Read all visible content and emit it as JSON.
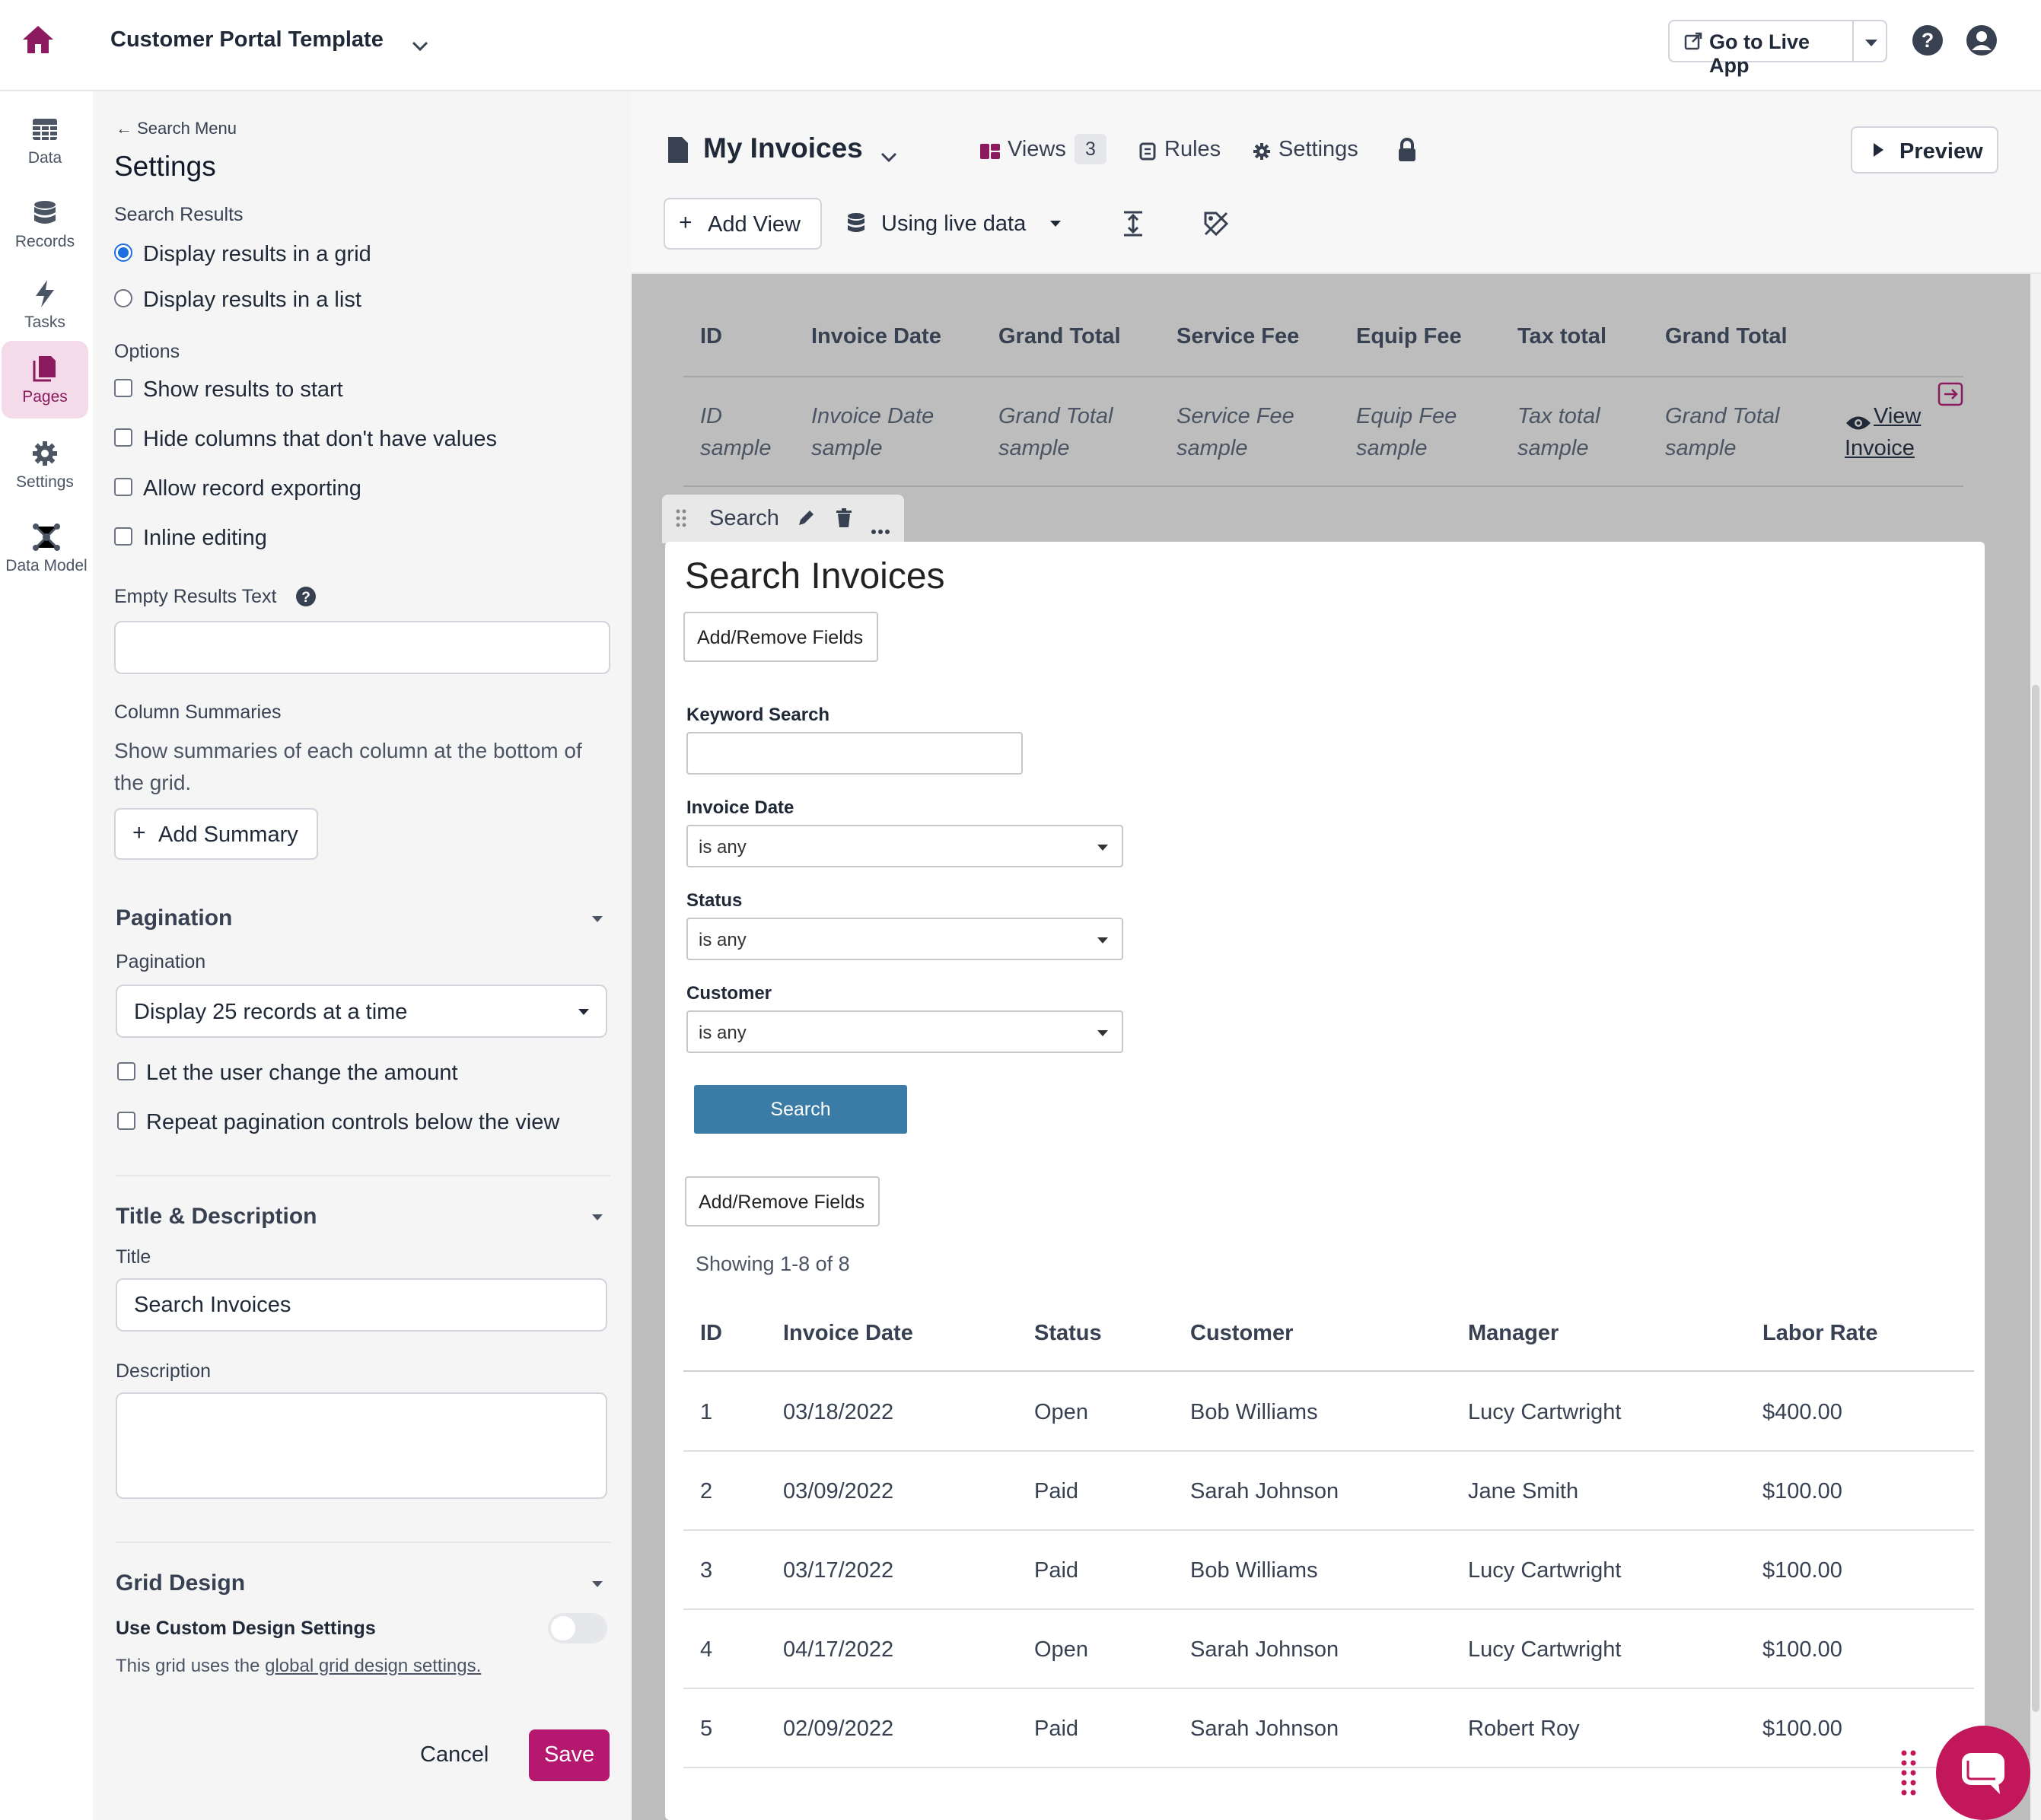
{
  "topbar": {
    "app_name": "Customer Portal Template",
    "go_live_label": "Go to Live App"
  },
  "leftnav": {
    "items": [
      {
        "label": "Data",
        "icon": "table-icon"
      },
      {
        "label": "Records",
        "icon": "database-icon"
      },
      {
        "label": "Tasks",
        "icon": "bolt-icon"
      },
      {
        "label": "Pages",
        "icon": "pages-icon"
      },
      {
        "label": "Settings",
        "icon": "gear-icon"
      },
      {
        "label": "Data Model",
        "icon": "network-icon"
      }
    ],
    "active": "Pages"
  },
  "panel": {
    "back_label": "Search Menu",
    "title": "Settings",
    "search_results_label": "Search Results",
    "display_grid": "Display results in a grid",
    "display_list": "Display results in a list",
    "options_label": "Options",
    "options": [
      "Show results to start",
      "Hide columns that don't have values",
      "Allow record exporting",
      "Inline editing"
    ],
    "empty_results_label": "Empty Results Text",
    "empty_results_value": "",
    "column_summaries_label": "Column Summaries",
    "column_summaries_desc": "Show summaries of each column at the bottom of the grid.",
    "add_summary": "Add Summary",
    "pagination_header": "Pagination",
    "pagination_label": "Pagination",
    "pagination_value": "Display 25 records at a time",
    "pagination_opts": [
      "Let the user change the amount",
      "Repeat pagination controls below the view"
    ],
    "title_desc_header": "Title & Description",
    "title_label": "Title",
    "title_value": "Search Invoices",
    "description_label": "Description",
    "description_value": "",
    "grid_design_header": "Grid Design",
    "custom_design_label": "Use Custom Design Settings",
    "grid_note_prefix": "This grid uses the ",
    "grid_note_link": "global grid design settings.",
    "cancel": "Cancel",
    "save": "Save"
  },
  "page": {
    "name": "My Invoices",
    "views_label": "Views",
    "views_count": "3",
    "rules_label": "Rules",
    "settings_label": "Settings",
    "preview_label": "Preview",
    "add_view_label": "Add View",
    "live_data_label": "Using live data"
  },
  "details_table": {
    "headers": [
      "ID",
      "Invoice Date",
      "Grand Total",
      "Service Fee",
      "Equip Fee",
      "Tax total",
      "Grand Total"
    ],
    "samples": [
      [
        "ID",
        "sample"
      ],
      [
        "Invoice Date",
        "sample"
      ],
      [
        "Grand Total",
        "sample"
      ],
      [
        "Service Fee",
        "sample"
      ],
      [
        "Equip Fee",
        "sample"
      ],
      [
        "Tax total",
        "sample"
      ],
      [
        "Grand Total",
        "sample"
      ]
    ],
    "view_link": [
      "View",
      "Invoice"
    ]
  },
  "search_view": {
    "tab_label": "Search",
    "title": "Search Invoices",
    "add_remove": "Add/Remove Fields",
    "keyword_label": "Keyword Search",
    "keyword_value": "",
    "fields": [
      {
        "label": "Invoice Date",
        "value": "is any"
      },
      {
        "label": "Status",
        "value": "is any"
      },
      {
        "label": "Customer",
        "value": "is any"
      }
    ],
    "search_button": "Search",
    "showing": "Showing 1-8 of 8",
    "columns": [
      "ID",
      "Invoice Date",
      "Status",
      "Customer",
      "Manager",
      "Labor Rate"
    ],
    "rows": [
      [
        "1",
        "03/18/2022",
        "Open",
        "Bob Williams",
        "Lucy Cartwright",
        "$400.00"
      ],
      [
        "2",
        "03/09/2022",
        "Paid",
        "Sarah Johnson",
        "Jane Smith",
        "$100.00"
      ],
      [
        "3",
        "03/17/2022",
        "Paid",
        "Bob Williams",
        "Lucy Cartwright",
        "$100.00"
      ],
      [
        "4",
        "04/17/2022",
        "Open",
        "Sarah Johnson",
        "Lucy Cartwright",
        "$100.00"
      ],
      [
        "5",
        "02/09/2022",
        "Paid",
        "Sarah Johnson",
        "Robert Roy",
        "$100.00"
      ]
    ]
  },
  "colors": {
    "brand": "#8b1a5e",
    "save_button": "#b5196f",
    "search_button": "#3a7ca5",
    "nav_active_bg": "#f3dbe9"
  }
}
